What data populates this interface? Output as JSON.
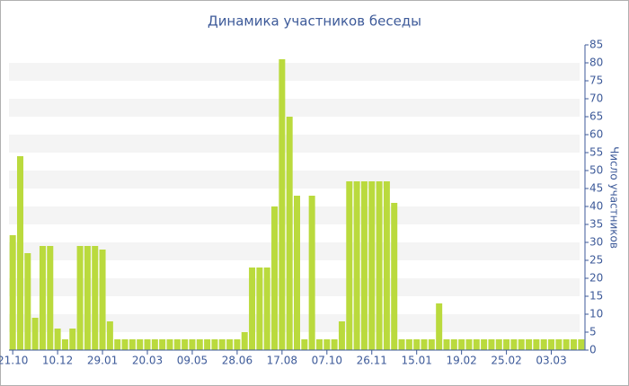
{
  "chart_data": {
    "type": "bar",
    "title": "Динамика участников беседы",
    "y_label": "Число участников",
    "categories": [
      "21.10",
      null,
      null,
      null,
      null,
      null,
      "10.12",
      null,
      null,
      null,
      null,
      null,
      "29.01",
      null,
      null,
      null,
      null,
      null,
      "20.03",
      null,
      null,
      null,
      null,
      null,
      "09.05",
      null,
      null,
      null,
      null,
      null,
      "28.06",
      null,
      null,
      null,
      null,
      null,
      "17.08",
      null,
      null,
      null,
      null,
      null,
      "07.10",
      null,
      null,
      null,
      null,
      null,
      "26.11",
      null,
      null,
      null,
      null,
      null,
      "15.01",
      null,
      null,
      null,
      null,
      null,
      "19.02",
      null,
      null,
      null,
      null,
      null,
      "25.02",
      null,
      null,
      null,
      null,
      null,
      "03.03",
      null,
      null,
      null,
      null
    ],
    "values": [
      32,
      54,
      27,
      9,
      29,
      29,
      6,
      3,
      6,
      29,
      29,
      29,
      28,
      8,
      3,
      3,
      3,
      3,
      3,
      3,
      3,
      3,
      3,
      3,
      3,
      3,
      3,
      3,
      3,
      3,
      3,
      5,
      23,
      23,
      23,
      40,
      81,
      65,
      43,
      3,
      43,
      3,
      3,
      3,
      8,
      47,
      47,
      47,
      47,
      47,
      47,
      41,
      3,
      3,
      3,
      3,
      3,
      13,
      3,
      3,
      3,
      3,
      3,
      3,
      3,
      3,
      3,
      3,
      3,
      3,
      3,
      3,
      3,
      3,
      3,
      3,
      3
    ],
    "color": "#bada3d",
    "ylim": [
      0,
      85
    ],
    "yticks": [
      0,
      5,
      10,
      15,
      20,
      25,
      30,
      35,
      40,
      45,
      50,
      55,
      60,
      65,
      70,
      75,
      80,
      85
    ],
    "grid": true
  }
}
